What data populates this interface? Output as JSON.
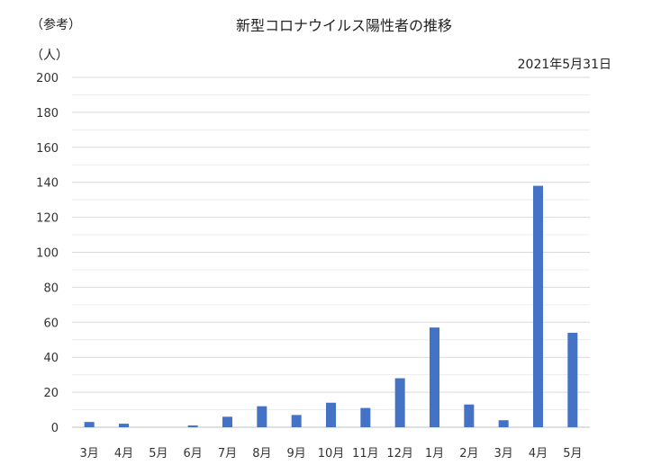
{
  "chart_data": {
    "type": "bar",
    "title": "新型コロナウイルス陽性者の推移",
    "note": "（参考）",
    "date": "2021年5月31日",
    "ylabel": "（人）",
    "xlabel": "",
    "categories": [
      "3月",
      "4月",
      "5月",
      "6月",
      "7月",
      "8月",
      "9月",
      "10月",
      "11月",
      "12月",
      "1月",
      "2月",
      "3月",
      "4月",
      "5月"
    ],
    "values": [
      3,
      2,
      0,
      1,
      6,
      12,
      7,
      14,
      11,
      28,
      57,
      13,
      4,
      138,
      54
    ],
    "ylim": [
      0,
      200
    ],
    "yticks": [
      0,
      20,
      40,
      60,
      80,
      100,
      120,
      140,
      160,
      180,
      200
    ],
    "grid": true,
    "minor_grid": true,
    "bar_color": "#4472C4"
  }
}
